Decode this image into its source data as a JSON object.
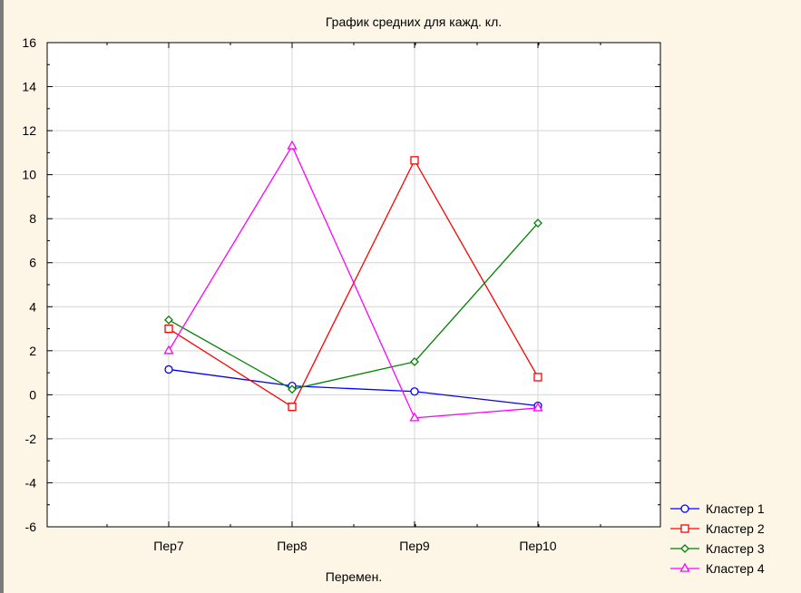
{
  "chart_data": {
    "type": "line",
    "title": "График средних для кажд. кл.",
    "xlabel": "Перемен.",
    "ylabel": "",
    "categories": [
      "Пер7",
      "Пер8",
      "Пер9",
      "Пер10"
    ],
    "ylim": [
      -6,
      16
    ],
    "yticks": [
      "-6",
      "-4",
      "-2",
      "0",
      "2",
      "4",
      "6",
      "8",
      "10",
      "12",
      "14",
      "16"
    ],
    "grid": true,
    "legend_position": "bottom-right",
    "series": [
      {
        "name": "Кластер  1",
        "values": [
          1.15,
          0.4,
          0.15,
          -0.5
        ],
        "color": "#0000ff",
        "marker": "circle"
      },
      {
        "name": "Кластер  2",
        "values": [
          3.0,
          -0.55,
          10.65,
          0.8
        ],
        "color": "#ff0000",
        "marker": "square"
      },
      {
        "name": "Кластер  3",
        "values": [
          3.4,
          0.25,
          1.5,
          7.8
        ],
        "color": "#008000",
        "marker": "diamond"
      },
      {
        "name": "Кластер  4",
        "values": [
          2.0,
          11.3,
          -1.05,
          -0.6
        ],
        "color": "#ff00ff",
        "marker": "triangle"
      }
    ]
  }
}
